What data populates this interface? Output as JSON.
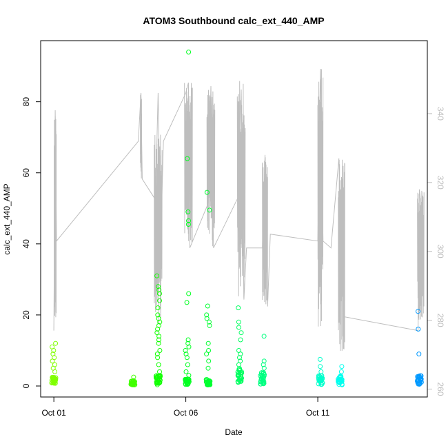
{
  "chart_data": {
    "type": "scatter",
    "title": "ATOM3 Southbound calc_ext_440_AMP",
    "xlabel": "Date",
    "ylabel": "calc_ext_440_AMP",
    "x_ticks": [
      "Oct 01",
      "Oct 06",
      "Oct 11"
    ],
    "x_tick_days": [
      1,
      6,
      11
    ],
    "xlim": [
      0.5,
      15.15
    ],
    "ylim": [
      -3.1,
      97.2
    ],
    "y_ticks": [
      0,
      20,
      40,
      60,
      80
    ],
    "y2lim": [
      257.7,
      361.2
    ],
    "y2_ticks": [
      260,
      280,
      300,
      320,
      340
    ],
    "grid": false,
    "legend": "none",
    "colors": {
      "secondary_line": "#bebebe",
      "clusters": [
        "#80ff00",
        "#40ff00",
        "#10ff00",
        "#00ff20",
        "#00ff30",
        "#00ff60",
        "#00ff80",
        "#00ffcc",
        "#00ffee",
        "#0099ff"
      ]
    },
    "point_series": [
      {
        "day": 1.0,
        "base": [
          0.5,
          2.5
        ],
        "extra": [
          4,
          5,
          6,
          7,
          8,
          9,
          10,
          11,
          12
        ],
        "color_index": 0
      },
      {
        "day": 4.0,
        "base": [
          0.3,
          1.5
        ],
        "extra": [
          2.5
        ],
        "color_index": 1
      },
      {
        "day": 4.95,
        "base": [
          0.3,
          3
        ],
        "extra": [
          4,
          6,
          8,
          9,
          10,
          12,
          13,
          14,
          15,
          16,
          17,
          18,
          19,
          20,
          22,
          24,
          26,
          27,
          28,
          31
        ],
        "color_index": 2
      },
      {
        "day": 6.05,
        "base": [
          0.3,
          2
        ],
        "extra": [
          3,
          4,
          6,
          8,
          9,
          10,
          11,
          12,
          13,
          23.5,
          26,
          45.5,
          46.5,
          49,
          64,
          94
        ],
        "color_index": 3
      },
      {
        "day": 6.85,
        "base": [
          0.3,
          2
        ],
        "extra": [
          5,
          7,
          9,
          10,
          12,
          17,
          18,
          19,
          20,
          22.5,
          49.5,
          54.5
        ],
        "color_index": 4
      },
      {
        "day": 8.05,
        "base": [
          1,
          5
        ],
        "extra": [
          6,
          7,
          8,
          9,
          10,
          13,
          15,
          16.5,
          18,
          22
        ],
        "color_index": 5
      },
      {
        "day": 8.9,
        "base": [
          0.5,
          4
        ],
        "extra": [
          5,
          6,
          7,
          14
        ],
        "color_index": 6
      },
      {
        "day": 11.1,
        "base": [
          0.3,
          3
        ],
        "extra": [
          4,
          5.5,
          7.5
        ],
        "color_index": 7
      },
      {
        "day": 11.85,
        "base": [
          0.3,
          3
        ],
        "extra": [
          4,
          5.5
        ],
        "color_index": 8
      },
      {
        "day": 14.85,
        "base": [
          0.3,
          3
        ],
        "extra": [
          9,
          16,
          21
        ],
        "color_index": 9
      }
    ],
    "secondary_path": [
      [
        1.0,
        277
      ],
      [
        1.05,
        341
      ],
      [
        1.1,
        303
      ],
      [
        4.2,
        332
      ],
      [
        4.3,
        346
      ],
      [
        4.35,
        321
      ],
      [
        4.85,
        315
      ],
      [
        4.95,
        346
      ],
      [
        5.05,
        303
      ],
      [
        5.15,
        332
      ],
      [
        6.0,
        346
      ],
      [
        6.1,
        349
      ],
      [
        6.15,
        301
      ],
      [
        6.85,
        314
      ],
      [
        6.95,
        348
      ],
      [
        7.05,
        301
      ],
      [
        8.0,
        316
      ],
      [
        8.1,
        347
      ],
      [
        8.2,
        286
      ],
      [
        8.3,
        301
      ],
      [
        8.9,
        301
      ],
      [
        9.0,
        328
      ],
      [
        9.1,
        284
      ],
      [
        9.2,
        305
      ],
      [
        11.0,
        303
      ],
      [
        11.1,
        353
      ],
      [
        11.2,
        303
      ],
      [
        11.5,
        301
      ],
      [
        11.8,
        327
      ],
      [
        11.9,
        303
      ],
      [
        12.0,
        281
      ],
      [
        14.8,
        277
      ],
      [
        14.85,
        318
      ],
      [
        14.95,
        311
      ],
      [
        15.0,
        282
      ]
    ],
    "secondary_bands": [
      {
        "center": 1.05,
        "width": 0.08,
        "min": 277,
        "max": 341
      },
      {
        "center": 4.3,
        "width": 0.05,
        "min": 321,
        "max": 346
      },
      {
        "center": 4.95,
        "width": 0.3,
        "min": 274,
        "max": 334
      },
      {
        "center": 6.1,
        "width": 0.3,
        "min": 301,
        "max": 349
      },
      {
        "center": 6.95,
        "width": 0.3,
        "min": 301,
        "max": 348
      },
      {
        "center": 8.1,
        "width": 0.3,
        "min": 286,
        "max": 350
      },
      {
        "center": 9.0,
        "width": 0.2,
        "min": 284,
        "max": 328
      },
      {
        "center": 11.1,
        "width": 0.2,
        "min": 277,
        "max": 353
      },
      {
        "center": 11.9,
        "width": 0.25,
        "min": 270,
        "max": 327
      },
      {
        "center": 14.9,
        "width": 0.25,
        "min": 280,
        "max": 318
      }
    ]
  }
}
